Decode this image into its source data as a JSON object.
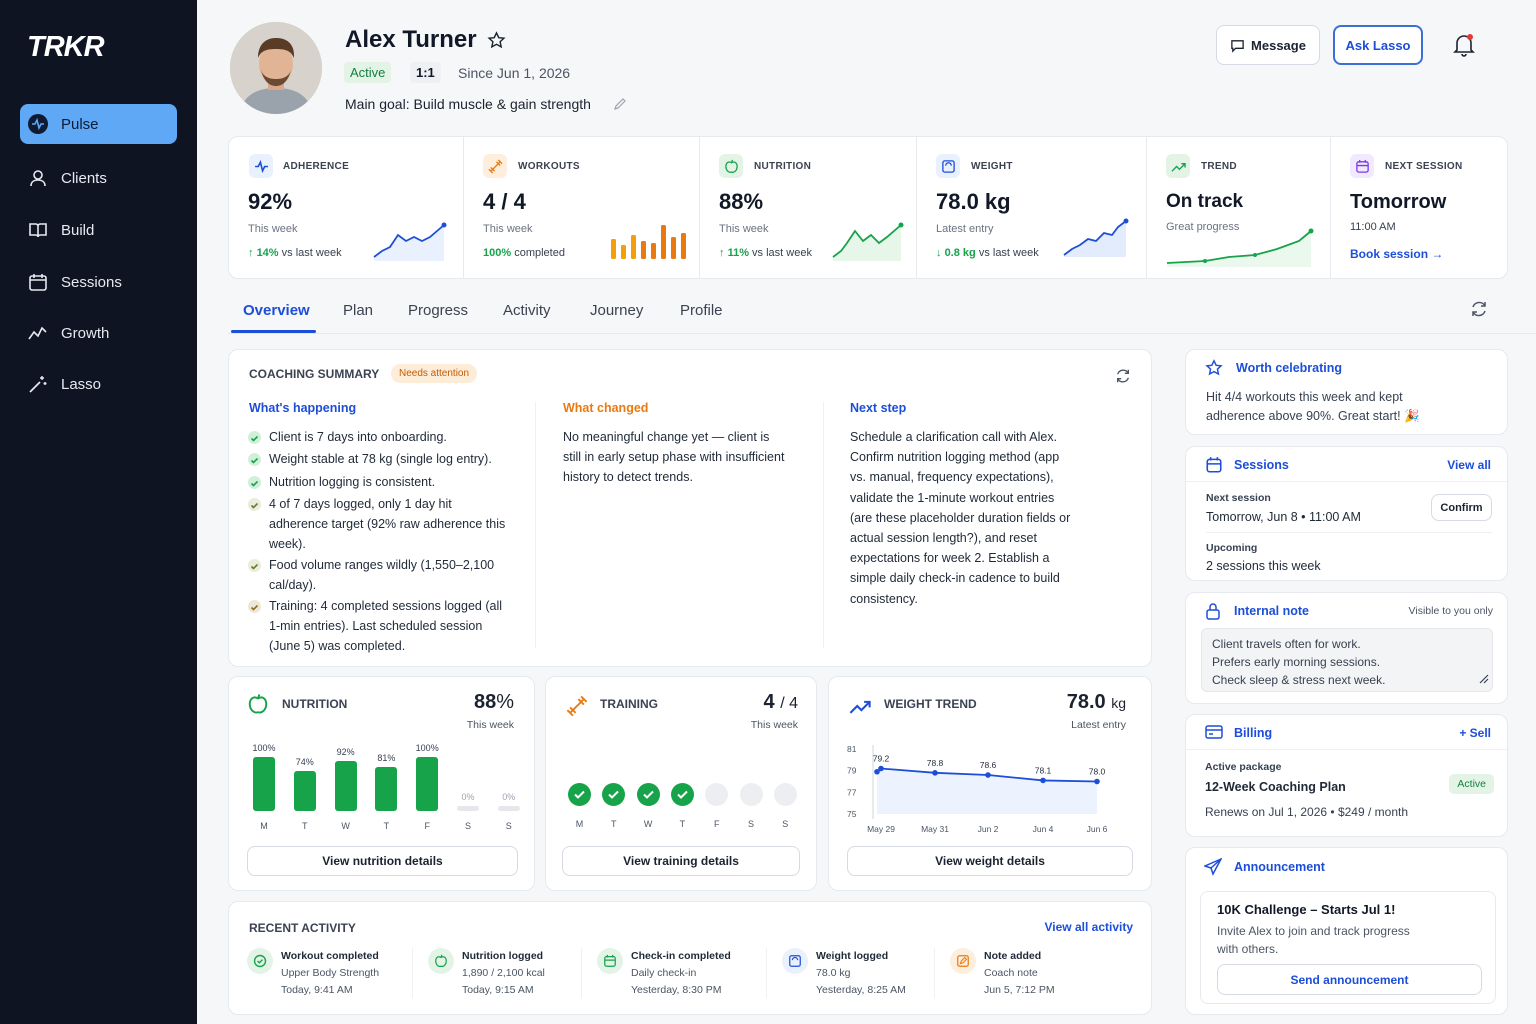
{
  "app": {
    "logo": "TRKR"
  },
  "sidebar": {
    "items": [
      {
        "label": "Pulse",
        "icon": "pulse-icon",
        "active": true
      },
      {
        "label": "Clients",
        "icon": "user-icon"
      },
      {
        "label": "Build",
        "icon": "book-icon"
      },
      {
        "label": "Sessions",
        "icon": "calendar-icon"
      },
      {
        "label": "Growth",
        "icon": "growth-icon"
      },
      {
        "label": "Lasso",
        "icon": "wand-icon"
      }
    ]
  },
  "client": {
    "name": "Alex Turner",
    "status": "Active",
    "type": "1:1",
    "since": "Since Jun 1, 2026",
    "goal": "Main goal: Build muscle & gain strength"
  },
  "header": {
    "message_label": "Message",
    "ask_label": "Ask Lasso"
  },
  "stats": {
    "adherence": {
      "label": "ADHERENCE",
      "value": "92%",
      "sub": "This week",
      "delta": "14%",
      "delta_suffix": "vs last week"
    },
    "workouts": {
      "label": "WORKOUTS",
      "value": "4 / 4",
      "sub": "This week",
      "foot_value": "100%",
      "foot_suffix": "completed"
    },
    "nutrition": {
      "label": "NUTRITION",
      "value": "88%",
      "sub": "This week",
      "delta": "11%",
      "delta_suffix": "vs last week"
    },
    "weight": {
      "label": "WEIGHT",
      "value": "78.0 kg",
      "sub": "Latest entry",
      "delta": "0.8 kg",
      "delta_suffix": "vs last week"
    },
    "trend": {
      "label": "TREND",
      "value": "On track",
      "sub": "Great progress"
    },
    "next_session": {
      "label": "NEXT SESSION",
      "value": "Tomorrow",
      "sub": "11:00 AM",
      "link": "Book session →"
    }
  },
  "tabs": [
    "Overview",
    "Plan",
    "Progress",
    "Activity",
    "Journey",
    "Profile"
  ],
  "summary": {
    "title": "COACHING SUMMARY",
    "badge": "Needs attention",
    "happening_title": "What's happening",
    "happening": [
      "Client is 7 days into onboarding.",
      "Weight stable at 78 kg (single log entry).",
      "Nutrition logging is consistent.",
      "4 of 7 days logged, only 1 day hit adherence target (92% raw adherence this week).",
      "Food volume ranges wildly (1,550–2,100 cal/day).",
      "Training: 4 completed sessions logged (all 1-min entries). Last scheduled session (June 5) was completed."
    ],
    "changed_title": "What changed",
    "changed_text": "No meaningful change yet — client is still in early setup phase with insufficient history to detect trends.",
    "next_title": "Next step",
    "next_text": "Schedule a clarification call with Alex. Confirm nutrition logging method (app vs. manual, frequency expectations), validate the 1-minute workout entries (are these placeholder duration fields or actual session length?), and reset expectations for week 2. Establish a simple daily check-in cadence to build consistency."
  },
  "nutrition_card": {
    "title": "NUTRITION",
    "value": "88",
    "unit": "%",
    "sub": "This week",
    "days": [
      "M",
      "T",
      "W",
      "T",
      "F",
      "S",
      "S"
    ],
    "labels": [
      "100%",
      "74%",
      "92%",
      "81%",
      "100%",
      "0%",
      "0%"
    ],
    "values": [
      100,
      74,
      92,
      81,
      100,
      0,
      0
    ],
    "button": "View nutrition details"
  },
  "training_card": {
    "title": "TRAINING",
    "value": "4",
    "unit": "/ 4",
    "sub": "This week",
    "days": [
      "M",
      "T",
      "W",
      "T",
      "F",
      "S",
      "S"
    ],
    "done": [
      true,
      true,
      true,
      true,
      false,
      false,
      false
    ],
    "button": "View training details"
  },
  "weight_card": {
    "title": "WEIGHT TREND",
    "value": "78.0",
    "unit": "kg",
    "sub": "Latest entry",
    "button": "View weight details"
  },
  "chart_data": {
    "type": "line",
    "title": "WEIGHT TREND",
    "x_ticks": [
      "May 29",
      "May 31",
      "Jun 2",
      "Jun 4",
      "Jun 6"
    ],
    "y_ticks": [
      81,
      79,
      77,
      75
    ],
    "ylim": [
      75,
      81
    ],
    "series": [
      {
        "points": [
          {
            "x": "May 28",
            "y": 78.9
          },
          {
            "x": "May 29",
            "y": 79.2
          },
          {
            "x": "May 31",
            "y": 78.8
          },
          {
            "x": "Jun 2",
            "y": 78.6
          },
          {
            "x": "Jun 4",
            "y": 78.1
          },
          {
            "x": "Jun 6",
            "y": 78.0
          }
        ],
        "labels": [
          "",
          "79.2",
          "78.8",
          "78.6",
          "78.1",
          "78.0"
        ]
      }
    ],
    "grid": false,
    "color": "#1d4ed8"
  },
  "activity": {
    "title": "RECENT ACTIVITY",
    "view_all": "View all activity",
    "items": [
      {
        "title": "Workout completed",
        "detail": "Upper Body Strength",
        "time": "Today, 9:41 AM",
        "icon": "check-circle-icon",
        "color": "#16a34a"
      },
      {
        "title": "Nutrition logged",
        "detail": "1,890 / 2,100 kcal",
        "time": "Today, 9:15 AM",
        "icon": "apple-icon",
        "color": "#16a34a"
      },
      {
        "title": "Check-in completed",
        "detail": "Daily check-in",
        "time": "Yesterday, 8:30 PM",
        "icon": "calendar-check-icon",
        "color": "#16a34a"
      },
      {
        "title": "Weight logged",
        "detail": "78.0 kg",
        "time": "Yesterday, 8:25 AM",
        "icon": "scale-icon",
        "color": "#1d4ed8"
      },
      {
        "title": "Note added",
        "detail": "Coach note",
        "time": "Jun 5, 7:12 PM",
        "icon": "note-icon",
        "color": "#ea7a10"
      }
    ]
  },
  "celebrate": {
    "title": "Worth celebrating",
    "text": "Hit 4/4 workouts this week and kept adherence above 90%. Great start! 🎉"
  },
  "sessions_panel": {
    "title": "Sessions",
    "view_all": "View all",
    "next_label": "Next session",
    "next_value": "Tomorrow, Jun 8 • 11:00 AM",
    "confirm": "Confirm",
    "upcoming_label": "Upcoming",
    "upcoming_value": "2 sessions this week"
  },
  "note": {
    "title": "Internal note",
    "visibility": "Visible to you only",
    "lines": [
      "Client travels often for work.",
      "Prefers early morning sessions.",
      "Check sleep & stress next week."
    ]
  },
  "billing": {
    "title": "Billing",
    "sell": "+ Sell",
    "package_label": "Active package",
    "plan": "12-Week Coaching Plan",
    "badge": "Active",
    "renews": "Renews on Jul 1, 2026 • $249 / month"
  },
  "announcement": {
    "title": "Announcement",
    "headline": "10K Challenge – Starts Jul 1!",
    "text": "Invite Alex to join and track progress with others.",
    "button": "Send announcement"
  }
}
